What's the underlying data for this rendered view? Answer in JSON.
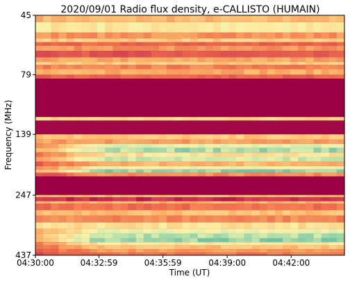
{
  "chart_data": {
    "type": "heatmap",
    "title": "2020/09/01  Radio flux density, e-CALLISTO (HUMAIN)",
    "xlabel": "Time (UT)",
    "ylabel": "Frequency (MHz)",
    "x_ticks": [
      "04:30:00",
      "04:32:59",
      "04:35:59",
      "04:39:00",
      "04:42:00"
    ],
    "y_ticks": [
      "45",
      "79",
      "139",
      "247",
      "437"
    ],
    "x_start": "04:30:00",
    "x_end": "04:44:30",
    "ylim": [
      45,
      437
    ],
    "y_inverted": true,
    "colormap": "spectral",
    "colors": {
      "background": "#9b0045",
      "hot": "#d03c52",
      "warm": "#ef6f4d",
      "mid": "#fdb96c",
      "light": "#fdf1a8",
      "green": "#d2ecab",
      "cyan": "#6ec2a6"
    },
    "bands": [
      {
        "f0": 45,
        "f1": 48,
        "level": 0.55
      },
      {
        "f0": 48,
        "f1": 53,
        "level": 0.72
      },
      {
        "f0": 53,
        "f1": 56,
        "level": 0.45
      },
      {
        "f0": 56,
        "f1": 58,
        "level": 0.62
      },
      {
        "f0": 58,
        "f1": 60,
        "level": 0.3
      },
      {
        "f0": 60,
        "f1": 63,
        "level": 0.45
      },
      {
        "f0": 63,
        "f1": 67,
        "level": 0.25
      },
      {
        "f0": 67,
        "f1": 70,
        "level": 0.5
      },
      {
        "f0": 70,
        "f1": 72,
        "level": 0.62
      },
      {
        "f0": 72,
        "f1": 75,
        "level": 0.4
      },
      {
        "f0": 75,
        "f1": 79,
        "level": 0.52
      },
      {
        "f0": 79,
        "f1": 82,
        "level": 0.3
      },
      {
        "f0": 82,
        "f1": 118,
        "level": 0.0
      },
      {
        "f0": 118,
        "f1": 122,
        "level": 0.65
      },
      {
        "f0": 122,
        "f1": 139,
        "level": 0.02
      },
      {
        "f0": 139,
        "f1": 146,
        "level": 0.6
      },
      {
        "f0": 146,
        "f1": 152,
        "level": 0.48
      },
      {
        "f0": 152,
        "f1": 158,
        "level": 0.82
      },
      {
        "f0": 158,
        "f1": 165,
        "level": 0.92
      },
      {
        "f0": 165,
        "f1": 172,
        "level": 0.7
      },
      {
        "f0": 172,
        "f1": 180,
        "level": 0.86
      },
      {
        "f0": 180,
        "f1": 188,
        "level": 0.55
      },
      {
        "f0": 188,
        "f1": 194,
        "level": 0.78
      },
      {
        "f0": 194,
        "f1": 200,
        "level": 0.97
      },
      {
        "f0": 200,
        "f1": 207,
        "level": 0.45
      },
      {
        "f0": 207,
        "f1": 247,
        "level": 0.0
      },
      {
        "f0": 247,
        "f1": 252,
        "level": 0.6
      },
      {
        "f0": 252,
        "f1": 262,
        "level": 0.12
      },
      {
        "f0": 262,
        "f1": 268,
        "level": 0.55
      },
      {
        "f0": 268,
        "f1": 285,
        "level": 0.35
      },
      {
        "f0": 285,
        "f1": 300,
        "level": 0.58
      },
      {
        "f0": 300,
        "f1": 320,
        "level": 0.42
      },
      {
        "f0": 320,
        "f1": 340,
        "level": 0.68
      },
      {
        "f0": 340,
        "f1": 356,
        "level": 0.8
      },
      {
        "f0": 356,
        "f1": 372,
        "level": 0.9
      },
      {
        "f0": 372,
        "f1": 386,
        "level": 0.96
      },
      {
        "f0": 386,
        "f1": 398,
        "level": 0.74
      },
      {
        "f0": 398,
        "f1": 412,
        "level": 0.58
      },
      {
        "f0": 412,
        "f1": 426,
        "level": 0.48
      },
      {
        "f0": 426,
        "f1": 437,
        "level": 0.38
      }
    ]
  }
}
